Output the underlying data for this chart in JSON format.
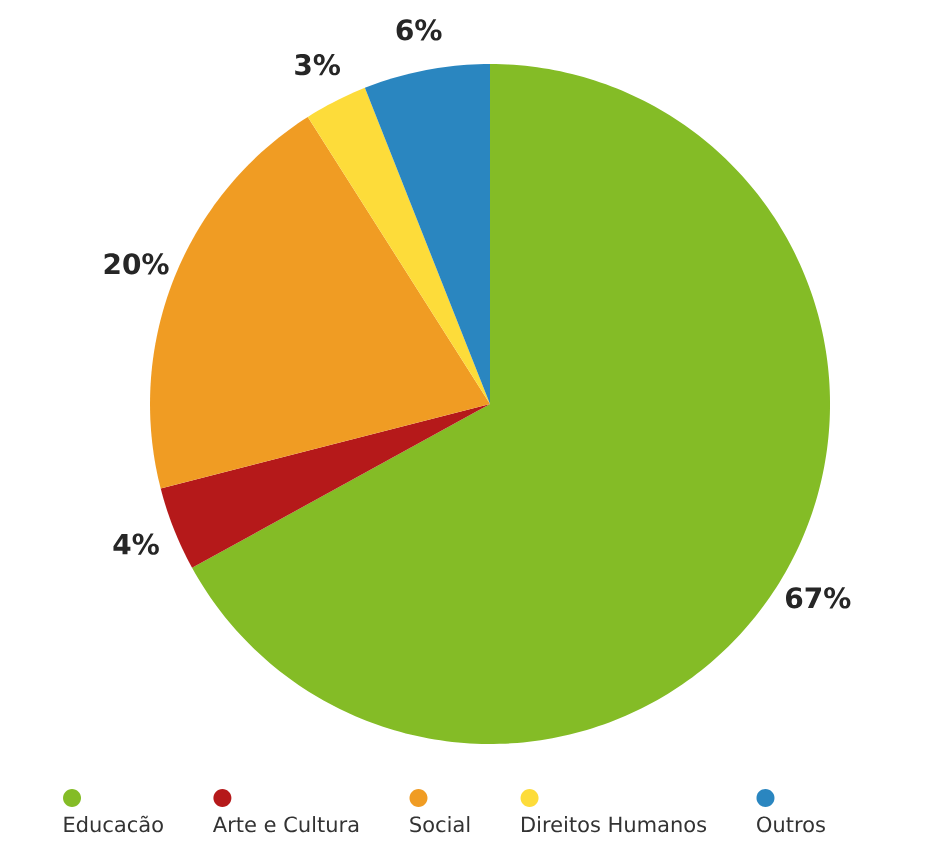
{
  "chart_data": {
    "type": "pie",
    "categories": [
      "Educacão",
      "Arte e Cultura",
      "Social",
      "Direitos Humanos",
      "Outros"
    ],
    "values": [
      67,
      4,
      20,
      3,
      6
    ],
    "colors": [
      "#84bc26",
      "#b5191a",
      "#f09c23",
      "#fddc3a",
      "#2a86c0"
    ],
    "value_labels": [
      "67%",
      "4%",
      "20%",
      "3%",
      "6%"
    ],
    "legend": "bottom"
  }
}
